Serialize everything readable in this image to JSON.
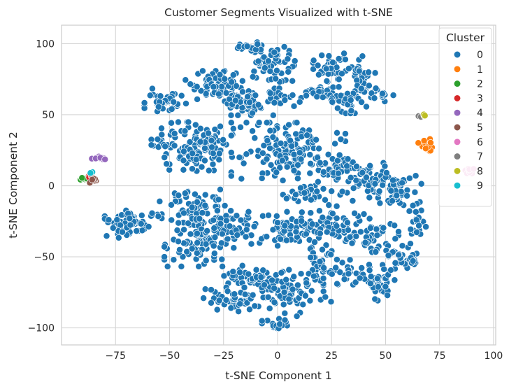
{
  "chart_data": {
    "type": "scatter",
    "title": "Customer Segments Visualized with t-SNE",
    "xlabel": "t-SNE Component 1",
    "ylabel": "t-SNE Component 2",
    "xlim": [
      -100,
      101
    ],
    "ylim": [
      -112,
      113
    ],
    "x_ticks": [
      -75,
      -50,
      -25,
      0,
      25,
      50,
      75,
      100
    ],
    "y_ticks": [
      -100,
      -50,
      0,
      50,
      100
    ],
    "x_tick_labels": [
      "−75",
      "−50",
      "−25",
      "0",
      "25",
      "50",
      "75",
      "100"
    ],
    "y_tick_labels": [
      "−100",
      "−50",
      "0",
      "50",
      "100"
    ],
    "grid": true,
    "legend": {
      "title": "Cluster",
      "position": "top-right",
      "entries": [
        "0",
        "1",
        "2",
        "3",
        "4",
        "5",
        "6",
        "7",
        "8",
        "9"
      ]
    },
    "colors": [
      "#1f77b4",
      "#ff7f0e",
      "#2ca02c",
      "#d62728",
      "#9467bd",
      "#8c564b",
      "#e377c2",
      "#7f7f7f",
      "#bcbd22",
      "#17becf"
    ],
    "series": [
      {
        "cluster": "0",
        "color": "#1f77b4",
        "regions": [
          {
            "cx": -4,
            "cy": 84,
            "rx": 10,
            "ry": 16,
            "n": 60
          },
          {
            "cx": -13,
            "cy": 98,
            "rx": 7,
            "ry": 3,
            "n": 18
          },
          {
            "cx": 4,
            "cy": 62,
            "rx": 7,
            "ry": 5,
            "n": 18
          },
          {
            "cx": -27,
            "cy": 70,
            "rx": 13,
            "ry": 9,
            "n": 80
          },
          {
            "cx": -14,
            "cy": 58,
            "rx": 10,
            "ry": 7,
            "n": 50
          },
          {
            "cx": -52,
            "cy": 60,
            "rx": 8,
            "ry": 7,
            "n": 40
          },
          {
            "cx": -44,
            "cy": 28,
            "rx": 12,
            "ry": 14,
            "n": 80
          },
          {
            "cx": -30,
            "cy": 25,
            "rx": 9,
            "ry": 14,
            "n": 55
          },
          {
            "cx": 5,
            "cy": 24,
            "rx": 22,
            "ry": 17,
            "n": 150
          },
          {
            "cx": 25,
            "cy": 82,
            "rx": 8,
            "ry": 10,
            "n": 40
          },
          {
            "cx": 38,
            "cy": 78,
            "rx": 6,
            "ry": 13,
            "n": 40
          },
          {
            "cx": 20,
            "cy": 65,
            "rx": 7,
            "ry": 6,
            "n": 30
          },
          {
            "cx": 33,
            "cy": 60,
            "rx": 9,
            "ry": 8,
            "n": 40
          },
          {
            "cx": 48,
            "cy": 65,
            "rx": 5,
            "ry": 5,
            "n": 16
          },
          {
            "cx": 43,
            "cy": 5,
            "rx": 13,
            "ry": 13,
            "n": 70
          },
          {
            "cx": 27,
            "cy": 12,
            "rx": 8,
            "ry": 8,
            "n": 30
          },
          {
            "cx": 57,
            "cy": -5,
            "rx": 8,
            "ry": 12,
            "n": 35
          },
          {
            "cx": 13,
            "cy": -5,
            "rx": 10,
            "ry": 7,
            "n": 35
          },
          {
            "cx": -40,
            "cy": -15,
            "rx": 13,
            "ry": 12,
            "n": 70
          },
          {
            "cx": -68,
            "cy": -27,
            "rx": 10,
            "ry": 8,
            "n": 60
          },
          {
            "cx": -38,
            "cy": -40,
            "rx": 12,
            "ry": 14,
            "n": 85
          },
          {
            "cx": -20,
            "cy": -30,
            "rx": 11,
            "ry": 12,
            "n": 60
          },
          {
            "cx": 7,
            "cy": -30,
            "rx": 12,
            "ry": 12,
            "n": 70
          },
          {
            "cx": 28,
            "cy": -28,
            "rx": 10,
            "ry": 12,
            "n": 50
          },
          {
            "cx": 44,
            "cy": -35,
            "rx": 10,
            "ry": 10,
            "n": 45
          },
          {
            "cx": -12,
            "cy": -65,
            "rx": 12,
            "ry": 10,
            "n": 55
          },
          {
            "cx": -20,
            "cy": -80,
            "rx": 12,
            "ry": 7,
            "n": 50
          },
          {
            "cx": 5,
            "cy": -75,
            "rx": 10,
            "ry": 14,
            "n": 55
          },
          {
            "cx": 0,
            "cy": -97,
            "rx": 6,
            "ry": 4,
            "n": 20
          },
          {
            "cx": 20,
            "cy": -60,
            "rx": 9,
            "ry": 18,
            "n": 45
          },
          {
            "cx": 33,
            "cy": -60,
            "rx": 8,
            "ry": 8,
            "n": 35
          },
          {
            "cx": 47,
            "cy": -70,
            "rx": 6,
            "ry": 9,
            "n": 30
          },
          {
            "cx": 58,
            "cy": -50,
            "rx": 8,
            "ry": 10,
            "n": 35
          },
          {
            "cx": 64,
            "cy": -27,
            "rx": 4,
            "ry": 12,
            "n": 22
          }
        ]
      },
      {
        "cluster": "1",
        "color": "#ff7f0e",
        "regions": [
          {
            "cx": 69,
            "cy": 29,
            "rx": 3.2,
            "ry": 4.2,
            "n": 24
          }
        ]
      },
      {
        "cluster": "2",
        "color": "#2ca02c",
        "regions": [
          {
            "cx": -89,
            "cy": 5,
            "rx": 2.2,
            "ry": 1.8,
            "n": 10
          }
        ]
      },
      {
        "cluster": "3",
        "color": "#d62728",
        "regions": [
          {
            "cx": -87,
            "cy": 6,
            "rx": 1.5,
            "ry": 1.3,
            "n": 4
          }
        ]
      },
      {
        "cluster": "4",
        "color": "#9467bd",
        "regions": [
          {
            "cx": -83,
            "cy": 19,
            "rx": 2.6,
            "ry": 2,
            "n": 12
          }
        ]
      },
      {
        "cluster": "5",
        "color": "#8c564b",
        "regions": [
          {
            "cx": -85,
            "cy": 4,
            "rx": 1.8,
            "ry": 2,
            "n": 6
          }
        ]
      },
      {
        "cluster": "6",
        "color": "#e377c2",
        "regions": [
          {
            "cx": 89,
            "cy": 11,
            "rx": 3,
            "ry": 2,
            "n": 12
          }
        ]
      },
      {
        "cluster": "7",
        "color": "#7f7f7f",
        "regions": [
          {
            "cx": 65.5,
            "cy": 49,
            "rx": 0.8,
            "ry": 0.8,
            "n": 2
          }
        ]
      },
      {
        "cluster": "8",
        "color": "#bcbd22",
        "regions": [
          {
            "cx": 68,
            "cy": 49.5,
            "rx": 1,
            "ry": 0.8,
            "n": 3
          }
        ]
      },
      {
        "cluster": "9",
        "color": "#17becf",
        "regions": [
          {
            "cx": -86,
            "cy": 9,
            "rx": 1,
            "ry": 0.8,
            "n": 2
          }
        ]
      }
    ]
  }
}
